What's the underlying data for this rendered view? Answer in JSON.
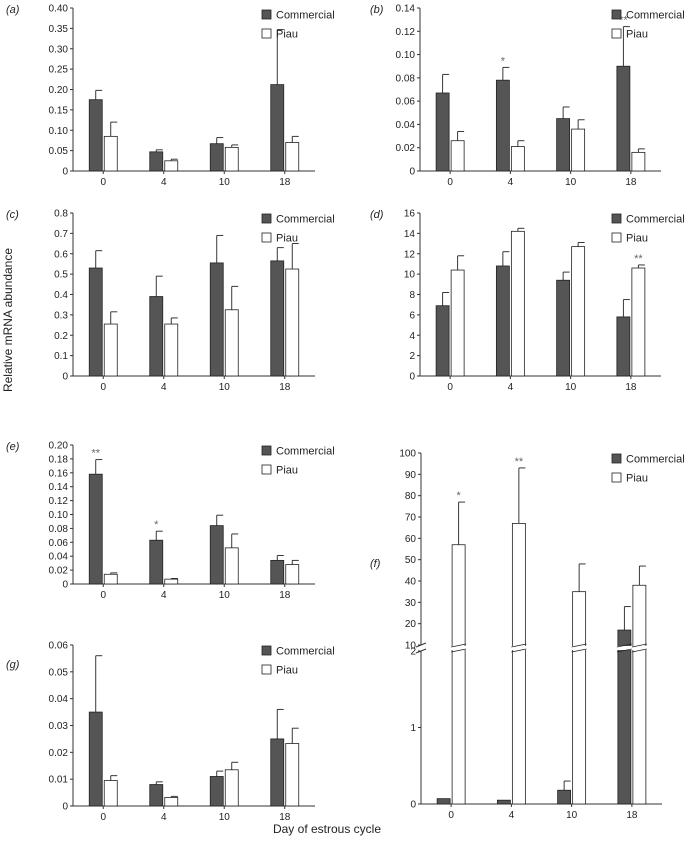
{
  "figure": {
    "ylabel": "Relative mRNA abundance",
    "xlabel": "Day of estrous cycle"
  },
  "colors": {
    "commercial": "#555555",
    "piau": "#ffffff",
    "stroke": "#222222",
    "axis": "#333333",
    "asterisk": "#666666"
  },
  "chart_data": [
    {
      "panel": "(a)",
      "type": "bar",
      "categories": [
        "0",
        "4",
        "10",
        "18"
      ],
      "ylim": [
        0,
        0.4
      ],
      "yticks": [
        "0",
        "0.05",
        "0.10",
        "0.15",
        "0.20",
        "0.25",
        "0.30",
        "0.35",
        "0.40"
      ],
      "legend": "top-right",
      "series": [
        {
          "name": "Commercial",
          "values": [
            0.175,
            0.047,
            0.067,
            0.212
          ],
          "errors": [
            0.023,
            0.005,
            0.015,
            0.135
          ]
        },
        {
          "name": "Piau",
          "values": [
            0.085,
            0.025,
            0.058,
            0.07
          ],
          "errors": [
            0.035,
            0.004,
            0.006,
            0.015
          ]
        }
      ],
      "annotations": [
        {
          "category": "0",
          "text": ""
        }
      ]
    },
    {
      "panel": "(b)",
      "type": "bar",
      "categories": [
        "0",
        "4",
        "10",
        "18"
      ],
      "ylim": [
        0,
        0.14
      ],
      "yticks": [
        "0",
        "0.02",
        "0.04",
        "0.06",
        "0.08",
        "0.10",
        "0.12",
        "0.14"
      ],
      "legend": "top-right",
      "series": [
        {
          "name": "Commercial",
          "values": [
            0.067,
            0.078,
            0.045,
            0.09
          ],
          "errors": [
            0.016,
            0.011,
            0.01,
            0.034
          ]
        },
        {
          "name": "Piau",
          "values": [
            0.026,
            0.021,
            0.036,
            0.016
          ],
          "errors": [
            0.008,
            0.005,
            0.008,
            0.003
          ]
        }
      ],
      "annotations": [
        {
          "category": "4",
          "text": "*"
        },
        {
          "category": "18",
          "text": "**"
        }
      ]
    },
    {
      "panel": "(c)",
      "type": "bar",
      "categories": [
        "0",
        "4",
        "10",
        "18"
      ],
      "ylim": [
        0,
        0.8
      ],
      "yticks": [
        "0",
        "0.1",
        "0.2",
        "0.3",
        "0.4",
        "0.5",
        "0.6",
        "0.7",
        "0.8"
      ],
      "legend": "top-right",
      "series": [
        {
          "name": "Commercial",
          "values": [
            0.53,
            0.39,
            0.555,
            0.565
          ],
          "errors": [
            0.085,
            0.1,
            0.135,
            0.065
          ]
        },
        {
          "name": "Piau",
          "values": [
            0.255,
            0.255,
            0.325,
            0.525
          ],
          "errors": [
            0.06,
            0.03,
            0.115,
            0.125
          ]
        }
      ],
      "annotations": []
    },
    {
      "panel": "(d)",
      "type": "bar",
      "categories": [
        "0",
        "4",
        "10",
        "18"
      ],
      "ylim": [
        0,
        16
      ],
      "yticks": [
        "0",
        "2",
        "4",
        "6",
        "8",
        "10",
        "12",
        "14",
        "16"
      ],
      "legend": "top-right",
      "series": [
        {
          "name": "Commercial",
          "values": [
            6.9,
            10.8,
            9.4,
            5.8
          ],
          "errors": [
            1.3,
            1.4,
            0.8,
            1.7
          ]
        },
        {
          "name": "Piau",
          "values": [
            10.4,
            14.2,
            12.7,
            10.6
          ],
          "errors": [
            1.4,
            0.3,
            0.4,
            0.3
          ]
        }
      ],
      "annotations": [
        {
          "category": "18",
          "text": "**"
        }
      ]
    },
    {
      "panel": "(e)",
      "type": "bar",
      "categories": [
        "0",
        "4",
        "10",
        "18"
      ],
      "ylim": [
        0,
        0.2
      ],
      "yticks": [
        "0",
        "0.02",
        "0.04",
        "0.06",
        "0.08",
        "0.10",
        "0.12",
        "0.14",
        "0.16",
        "0.18",
        "0.20"
      ],
      "legend": "top-right",
      "series": [
        {
          "name": "Commercial",
          "values": [
            0.158,
            0.063,
            0.084,
            0.034
          ],
          "errors": [
            0.021,
            0.013,
            0.015,
            0.007
          ]
        },
        {
          "name": "Piau",
          "values": [
            0.014,
            0.007,
            0.052,
            0.028
          ],
          "errors": [
            0.002,
            0.001,
            0.02,
            0.006
          ]
        }
      ],
      "annotations": [
        {
          "category": "0",
          "text": "**"
        },
        {
          "category": "4",
          "text": "*"
        }
      ]
    },
    {
      "panel": "(f)",
      "type": "bar",
      "categories": [
        "0",
        "4",
        "10",
        "18"
      ],
      "broken_axis": {
        "lower": [
          0,
          2
        ],
        "upper": [
          10,
          100
        ]
      },
      "yticks": [
        "0",
        "1",
        "2",
        "10",
        "20",
        "30",
        "40",
        "50",
        "60",
        "70",
        "80",
        "90",
        "100"
      ],
      "legend": "top-right",
      "series": [
        {
          "name": "Commercial",
          "values": [
            0.07,
            0.05,
            0.18,
            17
          ],
          "errors": [
            0,
            0,
            0.12,
            11
          ]
        },
        {
          "name": "Piau",
          "values": [
            57,
            67,
            35,
            38
          ],
          "errors": [
            20,
            26,
            13,
            9
          ]
        }
      ],
      "annotations": [
        {
          "category": "0",
          "text": "*"
        },
        {
          "category": "4",
          "text": "**"
        }
      ]
    },
    {
      "panel": "(g)",
      "type": "bar",
      "categories": [
        "0",
        "4",
        "10",
        "18"
      ],
      "ylim": [
        0,
        0.06
      ],
      "yticks": [
        "0",
        "0.01",
        "0.02",
        "0.03",
        "0.04",
        "0.05",
        "0.06"
      ],
      "legend": "top-right",
      "series": [
        {
          "name": "Commercial",
          "values": [
            0.035,
            0.008,
            0.011,
            0.025
          ],
          "errors": [
            0.021,
            0.001,
            0.002,
            0.011
          ]
        },
        {
          "name": "Piau",
          "values": [
            0.0095,
            0.0032,
            0.0135,
            0.0233
          ],
          "errors": [
            0.0018,
            0.0004,
            0.0028,
            0.0057
          ]
        }
      ],
      "annotations": []
    }
  ]
}
